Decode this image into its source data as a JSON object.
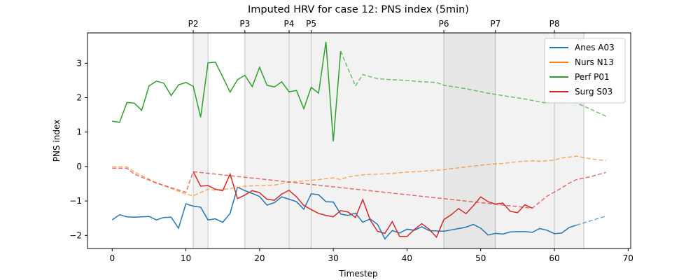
{
  "chart_data": {
    "type": "line",
    "title": "Imputed HRV for case 12: PNS index (5min)",
    "xlabel": "Timestep",
    "ylabel": "PNS index",
    "xlim": [
      -3.35,
      70.35
    ],
    "ylim": [
      -2.38,
      3.88
    ],
    "xticks": [
      0,
      10,
      20,
      30,
      40,
      50,
      60,
      70
    ],
    "yticks": [
      -2,
      -1,
      0,
      1,
      2,
      3
    ],
    "grid": false,
    "legend_position": "top-right",
    "phases": [
      {
        "label": "P2",
        "start": 11,
        "end": 13
      },
      {
        "label": "P3",
        "start": 18,
        "end": 24
      },
      {
        "label": "P4",
        "start": 24,
        "end": 27
      },
      {
        "label": "P5",
        "start": 27,
        "end": 45
      },
      {
        "label": "P6",
        "start": 45,
        "end": 52
      },
      {
        "label": "P7",
        "start": 52,
        "end": 60
      },
      {
        "label": "P8",
        "start": 60,
        "end": 64
      }
    ],
    "phase_shades": [
      {
        "start": 11,
        "end": 13,
        "opacity": 0.1
      },
      {
        "start": 18,
        "end": 24,
        "opacity": 0.1
      },
      {
        "start": 24,
        "end": 27,
        "opacity": 0.1
      },
      {
        "start": 27,
        "end": 45,
        "opacity": 0.1
      },
      {
        "start": 45,
        "end": 52,
        "opacity": 0.2
      },
      {
        "start": 52,
        "end": 60,
        "opacity": 0.1
      },
      {
        "start": 60,
        "end": 64,
        "opacity": 0.1
      }
    ],
    "series": [
      {
        "name": "Anes A03",
        "color": "#1f77b4",
        "observed": [
          [
            0,
            -1.55
          ],
          [
            1,
            -1.4
          ],
          [
            2,
            -1.46
          ],
          [
            3,
            -1.47
          ],
          [
            4,
            -1.46
          ],
          [
            5,
            -1.45
          ],
          [
            6,
            -1.55
          ],
          [
            7,
            -1.48
          ],
          [
            8,
            -1.47
          ],
          [
            9,
            -1.79
          ],
          [
            10,
            -1.08
          ],
          [
            11,
            -1.15
          ],
          [
            12,
            -1.18
          ],
          [
            13,
            -1.55
          ],
          [
            14,
            -1.52
          ],
          [
            15,
            -1.62
          ],
          [
            16,
            -1.36
          ],
          [
            17,
            -0.6
          ],
          [
            18,
            -0.7
          ],
          [
            19,
            -0.78
          ],
          [
            20,
            -0.87
          ],
          [
            21,
            -1.12
          ],
          [
            22,
            -1.05
          ],
          [
            23,
            -0.88
          ],
          [
            24,
            -0.95
          ],
          [
            25,
            -1.02
          ],
          [
            26,
            -1.24
          ],
          [
            27,
            -0.79
          ],
          [
            28,
            -0.82
          ],
          [
            29,
            -1.02
          ],
          [
            30,
            -1.03
          ],
          [
            31,
            -1.38
          ],
          [
            32,
            -1.42
          ],
          [
            33,
            -1.35
          ],
          [
            34,
            -1.62
          ],
          [
            35,
            -1.52
          ],
          [
            36,
            -1.68
          ],
          [
            37,
            -2.1
          ],
          [
            38,
            -1.86
          ],
          [
            39,
            -1.93
          ],
          [
            40,
            -1.82
          ],
          [
            41,
            -1.85
          ],
          [
            42,
            -1.75
          ],
          [
            43,
            -1.86
          ],
          [
            44,
            -1.87
          ],
          [
            45,
            -1.88
          ],
          [
            46,
            -1.84
          ],
          [
            47,
            -1.8
          ],
          [
            48,
            -1.76
          ],
          [
            49,
            -1.68
          ],
          [
            50,
            -1.79
          ],
          [
            51,
            -1.99
          ],
          [
            52,
            -1.94
          ],
          [
            53,
            -1.96
          ],
          [
            54,
            -1.9
          ],
          [
            55,
            -1.89
          ],
          [
            56,
            -1.89
          ],
          [
            57,
            -1.91
          ],
          [
            58,
            -1.8
          ],
          [
            59,
            -1.85
          ],
          [
            60,
            -1.95
          ],
          [
            61,
            -1.93
          ],
          [
            62,
            -1.77
          ],
          [
            63,
            -1.7
          ]
        ],
        "imputed": [
          [
            63,
            -1.7
          ],
          [
            67,
            -1.44
          ]
        ]
      },
      {
        "name": "Nurs N13",
        "color": "#ff7f0e",
        "observed": [],
        "imputed": [
          [
            0,
            -0.01
          ],
          [
            2,
            -0.01
          ],
          [
            3,
            -0.16
          ],
          [
            6,
            -0.47
          ],
          [
            10,
            -0.8
          ],
          [
            11,
            -0.85
          ],
          [
            13,
            -0.66
          ],
          [
            14,
            -0.69
          ],
          [
            16,
            -0.64
          ],
          [
            18,
            -0.57
          ],
          [
            20,
            -0.55
          ],
          [
            22,
            -0.54
          ],
          [
            24,
            -0.45
          ],
          [
            26,
            -0.42
          ],
          [
            28,
            -0.38
          ],
          [
            30,
            -0.33
          ],
          [
            31,
            -0.38
          ],
          [
            32,
            -0.3
          ],
          [
            34,
            -0.24
          ],
          [
            36,
            -0.22
          ],
          [
            38,
            -0.2
          ],
          [
            40,
            -0.16
          ],
          [
            42,
            -0.14
          ],
          [
            45,
            -0.09
          ],
          [
            48,
            -0.01
          ],
          [
            51,
            0.06
          ],
          [
            53,
            0.09
          ],
          [
            55,
            0.14
          ],
          [
            57,
            0.17
          ],
          [
            58,
            0.15
          ],
          [
            60,
            0.19
          ],
          [
            61,
            0.25
          ],
          [
            63,
            0.3
          ],
          [
            65,
            0.22
          ],
          [
            67,
            0.17
          ]
        ]
      },
      {
        "name": "Perf P01",
        "color": "#2ca02c",
        "observed": [
          [
            0,
            1.32
          ],
          [
            1,
            1.28
          ],
          [
            2,
            1.86
          ],
          [
            3,
            1.84
          ],
          [
            4,
            1.63
          ],
          [
            5,
            2.34
          ],
          [
            6,
            2.48
          ],
          [
            7,
            2.42
          ],
          [
            8,
            2.06
          ],
          [
            9,
            2.37
          ],
          [
            10,
            2.44
          ],
          [
            11,
            2.33
          ],
          [
            12,
            1.43
          ],
          [
            13,
            3.01
          ],
          [
            14,
            3.03
          ],
          [
            15,
            2.6
          ],
          [
            16,
            2.16
          ],
          [
            17,
            2.52
          ],
          [
            18,
            2.65
          ],
          [
            19,
            2.32
          ],
          [
            20,
            2.88
          ],
          [
            21,
            2.36
          ],
          [
            22,
            2.31
          ],
          [
            23,
            2.46
          ],
          [
            24,
            2.17
          ],
          [
            25,
            2.21
          ],
          [
            26,
            1.68
          ],
          [
            27,
            2.3
          ],
          [
            28,
            2.13
          ],
          [
            29,
            3.62
          ],
          [
            30,
            0.73
          ],
          [
            31,
            3.35
          ]
        ],
        "imputed": [
          [
            31,
            3.35
          ],
          [
            33,
            2.34
          ],
          [
            34,
            2.67
          ],
          [
            36,
            2.55
          ],
          [
            38,
            2.52
          ],
          [
            40,
            2.5
          ],
          [
            42,
            2.46
          ],
          [
            44,
            2.44
          ],
          [
            45,
            2.36
          ],
          [
            48,
            2.26
          ],
          [
            51,
            2.13
          ],
          [
            53,
            2.06
          ],
          [
            56,
            1.96
          ],
          [
            59,
            1.84
          ],
          [
            60,
            1.87
          ],
          [
            63,
            1.85
          ],
          [
            67,
            1.46
          ]
        ]
      },
      {
        "name": "Surg S03",
        "color": "#d62728",
        "observed": [
          [
            11,
            -0.15
          ],
          [
            12,
            -0.57
          ],
          [
            13,
            -0.55
          ],
          [
            14,
            -0.66
          ],
          [
            15,
            -0.7
          ],
          [
            16,
            -0.22
          ],
          [
            17,
            -0.93
          ],
          [
            18,
            -0.83
          ],
          [
            19,
            -0.7
          ],
          [
            20,
            -0.76
          ],
          [
            21,
            -0.95
          ],
          [
            22,
            -0.98
          ],
          [
            23,
            -0.8
          ],
          [
            24,
            -0.69
          ],
          [
            25,
            -0.88
          ],
          [
            26,
            -1.13
          ],
          [
            27,
            -1.25
          ],
          [
            28,
            -1.36
          ],
          [
            29,
            -1.42
          ],
          [
            30,
            -1.46
          ],
          [
            31,
            -1.28
          ],
          [
            32,
            -1.32
          ],
          [
            33,
            -1.48
          ],
          [
            34,
            -0.96
          ],
          [
            35,
            -1.55
          ],
          [
            36,
            -1.88
          ],
          [
            37,
            -1.94
          ],
          [
            38,
            -1.6
          ],
          [
            39,
            -2.03
          ],
          [
            40,
            -2.03
          ],
          [
            41,
            -1.83
          ],
          [
            42,
            -1.66
          ],
          [
            43,
            -1.82
          ],
          [
            44,
            -2.05
          ],
          [
            45,
            -1.54
          ],
          [
            46,
            -1.4
          ],
          [
            47,
            -1.22
          ],
          [
            48,
            -1.37
          ],
          [
            49,
            -1.14
          ],
          [
            50,
            -0.88
          ],
          [
            51,
            -1.02
          ],
          [
            52,
            -1.09
          ],
          [
            53,
            -1.06
          ],
          [
            54,
            -1.3
          ],
          [
            55,
            -1.34
          ],
          [
            56,
            -1.11
          ],
          [
            57,
            -1.21
          ]
        ],
        "imputed": [
          [
            0,
            -0.05
          ],
          [
            2,
            -0.05
          ],
          [
            3,
            -0.22
          ],
          [
            6,
            -0.48
          ],
          [
            10,
            -0.75
          ],
          [
            11,
            -0.15
          ],
          [
            57,
            -1.21
          ],
          [
            59,
            -0.86
          ],
          [
            61,
            -0.62
          ],
          [
            62,
            -0.48
          ],
          [
            63,
            -0.38
          ],
          [
            65,
            -0.29
          ],
          [
            67,
            -0.17
          ]
        ]
      }
    ]
  }
}
